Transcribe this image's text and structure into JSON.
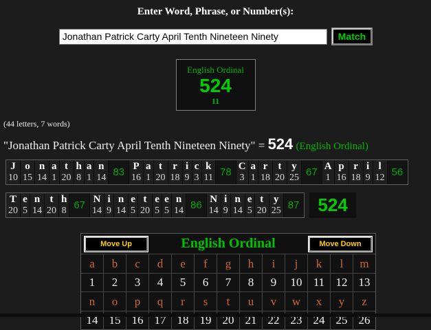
{
  "page": {
    "title": "Enter Word, Phrase, or Number(s):",
    "input_value": "Jonathan Patrick Carty April Tenth Nineteen Ninety",
    "match_label": "Match"
  },
  "summary_box": {
    "cipher": "English Ordinal",
    "value": "524",
    "reduced": "11"
  },
  "stats_line": "(44 letters, 7 words)",
  "result_line": {
    "phrase_quoted": "\"Jonathan Patrick Carty April Tenth Nineteen Ninety\"",
    "equals": " = ",
    "value": "524",
    "cipher_label": "(English Ordinal)"
  },
  "breakdown": {
    "rows": [
      {
        "words": [
          {
            "letters": [
              "J",
              "o",
              "n",
              "a",
              "t",
              "h",
              "a",
              "n"
            ],
            "values": [
              10,
              15,
              14,
              1,
              20,
              8,
              1,
              14
            ],
            "sum": 83
          },
          {
            "letters": [
              "P",
              "a",
              "t",
              "r",
              "i",
              "c",
              "k"
            ],
            "values": [
              16,
              1,
              20,
              18,
              9,
              3,
              11
            ],
            "sum": 78
          },
          {
            "letters": [
              "C",
              "a",
              "r",
              "t",
              "y"
            ],
            "values": [
              3,
              1,
              18,
              20,
              25
            ],
            "sum": 67
          },
          {
            "letters": [
              "A",
              "p",
              "r",
              "i",
              "l"
            ],
            "values": [
              1,
              16,
              18,
              9,
              12
            ],
            "sum": 56
          }
        ]
      },
      {
        "words": [
          {
            "letters": [
              "T",
              "e",
              "n",
              "t",
              "h"
            ],
            "values": [
              20,
              5,
              14,
              20,
              8
            ],
            "sum": 67
          },
          {
            "letters": [
              "N",
              "i",
              "n",
              "e",
              "t",
              "e",
              "e",
              "n"
            ],
            "values": [
              14,
              9,
              14,
              5,
              20,
              5,
              5,
              14
            ],
            "sum": 86
          },
          {
            "letters": [
              "N",
              "i",
              "n",
              "e",
              "t",
              "y"
            ],
            "values": [
              14,
              9,
              14,
              5,
              20,
              25
            ],
            "sum": 87
          }
        ],
        "total": "524"
      }
    ]
  },
  "cipher_table": {
    "move_up_label": "Move Up",
    "title": "English Ordinal",
    "move_down_label": "Move Down",
    "rows": [
      {
        "letters": [
          "a",
          "b",
          "c",
          "d",
          "e",
          "f",
          "g",
          "h",
          "i",
          "j",
          "k",
          "l",
          "m"
        ],
        "values": [
          1,
          2,
          3,
          4,
          5,
          6,
          7,
          8,
          9,
          10,
          11,
          12,
          13
        ]
      },
      {
        "letters": [
          "n",
          "o",
          "p",
          "q",
          "r",
          "s",
          "t",
          "u",
          "v",
          "w",
          "x",
          "y",
          "z"
        ],
        "values": [
          14,
          15,
          16,
          17,
          18,
          19,
          20,
          21,
          22,
          23,
          24,
          25,
          26
        ]
      }
    ]
  },
  "colors": {
    "green_bright": "#00cc00",
    "green_label": "#00b400",
    "orange_letter": "#cc6633",
    "yellow_button": "#ffcc00",
    "background": "#1c1c1c"
  }
}
